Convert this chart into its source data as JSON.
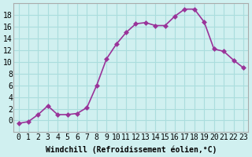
{
  "x": [
    0,
    1,
    2,
    3,
    4,
    5,
    6,
    7,
    8,
    9,
    10,
    11,
    12,
    13,
    14,
    15,
    16,
    17,
    18,
    19,
    20,
    21,
    22,
    23
  ],
  "y": [
    -0.5,
    -0.2,
    1.0,
    2.5,
    1.0,
    1.0,
    1.2,
    2.2,
    6.0,
    10.5,
    13.0,
    15.0,
    16.5,
    16.7,
    16.2,
    16.2,
    17.8,
    19.0,
    19.0,
    16.8,
    12.2,
    11.8,
    10.3,
    9.0
  ],
  "line_color": "#993399",
  "marker_color": "#993399",
  "bg_color": "#d0f0f0",
  "grid_color": "#aadddd",
  "xlabel": "Windchill (Refroidissement éolien,°C)",
  "xlim": [
    -0.5,
    23.5
  ],
  "ylim": [
    -2,
    20
  ],
  "xticks": [
    0,
    1,
    2,
    3,
    4,
    5,
    6,
    7,
    8,
    9,
    10,
    11,
    12,
    13,
    14,
    15,
    16,
    17,
    18,
    19,
    20,
    21,
    22,
    23
  ],
  "yticks": [
    0,
    2,
    4,
    6,
    8,
    10,
    12,
    14,
    16,
    18
  ],
  "xlabel_fontsize": 7,
  "tick_fontsize": 7,
  "marker_size": 3,
  "line_width": 1.2
}
